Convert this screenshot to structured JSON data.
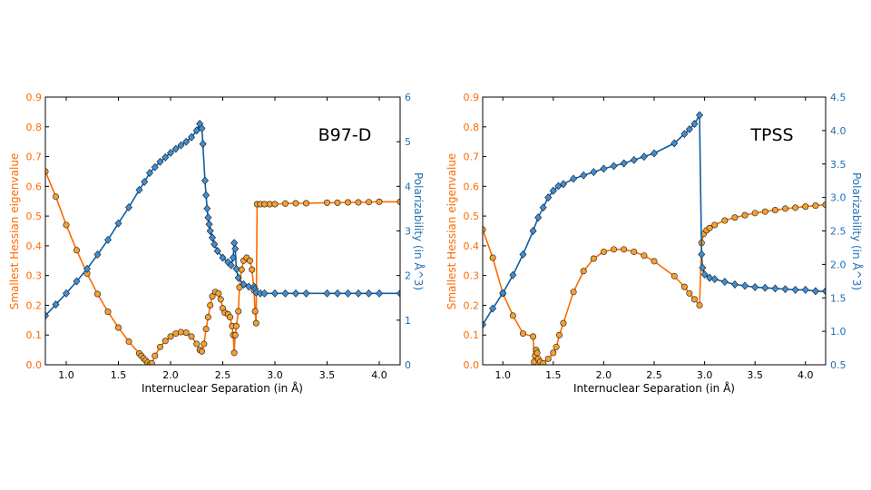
{
  "colors": {
    "eig_line": "#ff6a00",
    "eig_marker": "#f5a030",
    "pol_line": "#0b5fa8",
    "pol_marker": "#3e8fd6",
    "edge": "#1a1a1a",
    "eig_axis": "#ff6a00",
    "pol_axis": "#1f6fb5"
  },
  "chart_data": [
    {
      "type": "line",
      "title": "B97-D",
      "xlabel": "Internuclear Separation (in Å)",
      "ylabel": "Smallest Hessian eigenvalue",
      "y2label": "Polarizability (in Å^3)",
      "xlim": [
        0.8,
        4.2
      ],
      "ylim": [
        0,
        0.9
      ],
      "y2lim": [
        0,
        6
      ],
      "xticks": [
        "1.0",
        "1.5",
        "2.0",
        "2.5",
        "3.0",
        "3.5",
        "4.0"
      ],
      "yticks": [
        "0.0",
        "0.1",
        "0.2",
        "0.3",
        "0.4",
        "0.5",
        "0.6",
        "0.7",
        "0.8",
        "0.9"
      ],
      "y2ticks": [
        "0",
        "1",
        "2",
        "3",
        "4",
        "5",
        "6"
      ],
      "series": [
        {
          "axis": "left",
          "marker": "circle",
          "x": [
            0.8,
            0.9,
            1.0,
            1.1,
            1.2,
            1.3,
            1.4,
            1.5,
            1.6,
            1.7,
            1.72,
            1.74,
            1.76,
            1.78,
            1.8,
            1.82,
            1.85,
            1.9,
            1.95,
            2.0,
            2.05,
            2.1,
            2.15,
            2.2,
            2.25,
            2.28,
            2.3,
            2.32,
            2.34,
            2.36,
            2.38,
            2.4,
            2.43,
            2.46,
            2.48,
            2.5,
            2.52,
            2.55,
            2.57,
            2.59,
            2.6,
            2.61,
            2.62,
            2.63,
            2.65,
            2.66,
            2.68,
            2.7,
            2.73,
            2.76,
            2.78,
            2.8,
            2.81,
            2.82,
            2.83,
            2.86,
            2.9,
            2.95,
            3.0,
            3.1,
            3.2,
            3.3,
            3.5,
            3.6,
            3.7,
            3.8,
            3.9,
            4.0,
            4.2
          ],
          "y": [
            0.65,
            0.565,
            0.47,
            0.385,
            0.307,
            0.238,
            0.178,
            0.125,
            0.078,
            0.038,
            0.03,
            0.022,
            0.015,
            0.007,
            0.0,
            0.005,
            0.03,
            0.06,
            0.08,
            0.095,
            0.105,
            0.11,
            0.108,
            0.095,
            0.07,
            0.05,
            0.045,
            0.07,
            0.12,
            0.16,
            0.2,
            0.23,
            0.245,
            0.24,
            0.22,
            0.19,
            0.175,
            0.17,
            0.16,
            0.13,
            0.1,
            0.04,
            0.1,
            0.13,
            0.18,
            0.26,
            0.32,
            0.35,
            0.36,
            0.35,
            0.32,
            0.25,
            0.18,
            0.14,
            0.54,
            0.54,
            0.54,
            0.54,
            0.54,
            0.542,
            0.543,
            0.543,
            0.545,
            0.545,
            0.546,
            0.546,
            0.547,
            0.548,
            0.548
          ]
        },
        {
          "axis": "right",
          "marker": "diamond",
          "x": [
            0.8,
            0.9,
            1.0,
            1.1,
            1.2,
            1.3,
            1.4,
            1.5,
            1.6,
            1.7,
            1.75,
            1.8,
            1.85,
            1.9,
            1.95,
            2.0,
            2.05,
            2.1,
            2.15,
            2.2,
            2.25,
            2.28,
            2.3,
            2.31,
            2.33,
            2.34,
            2.35,
            2.36,
            2.37,
            2.38,
            2.4,
            2.42,
            2.45,
            2.5,
            2.55,
            2.58,
            2.6,
            2.61,
            2.62,
            2.63,
            2.65,
            2.7,
            2.75,
            2.8,
            2.81,
            2.82,
            2.86,
            2.9,
            3.0,
            3.1,
            3.2,
            3.3,
            3.5,
            3.6,
            3.7,
            3.8,
            3.9,
            4.0,
            4.2
          ],
          "y": [
            1.1,
            1.35,
            1.6,
            1.87,
            2.15,
            2.47,
            2.8,
            3.17,
            3.53,
            3.92,
            4.1,
            4.3,
            4.43,
            4.55,
            4.65,
            4.75,
            4.84,
            4.92,
            5.0,
            5.1,
            5.25,
            5.4,
            5.3,
            4.95,
            4.13,
            3.8,
            3.5,
            3.3,
            3.15,
            3.0,
            2.85,
            2.7,
            2.55,
            2.4,
            2.3,
            2.23,
            2.4,
            2.73,
            2.6,
            2.15,
            1.95,
            1.8,
            1.75,
            1.75,
            1.7,
            1.62,
            1.6,
            1.6,
            1.6,
            1.6,
            1.6,
            1.6,
            1.6,
            1.6,
            1.6,
            1.6,
            1.6,
            1.6,
            1.6
          ]
        }
      ]
    },
    {
      "type": "line",
      "title": "TPSS",
      "xlabel": "Internuclear Separation (in Å)",
      "ylabel": "Smallest Hessian eigenvalue",
      "y2label": "Polarizability (in Å^3)",
      "xlim": [
        0.8,
        4.2
      ],
      "ylim": [
        0,
        0.9
      ],
      "y2lim": [
        0.5,
        4.5
      ],
      "xticks": [
        "1.0",
        "1.5",
        "2.0",
        "2.5",
        "3.0",
        "3.5",
        "4.0"
      ],
      "yticks": [
        "0.0",
        "0.1",
        "0.2",
        "0.3",
        "0.4",
        "0.5",
        "0.6",
        "0.7",
        "0.8",
        "0.9"
      ],
      "y2ticks": [
        "0.5",
        "1.0",
        "1.5",
        "2.0",
        "2.5",
        "3.0",
        "3.5",
        "4.0",
        "4.5"
      ],
      "series": [
        {
          "axis": "left",
          "marker": "circle",
          "x": [
            0.8,
            0.9,
            1.0,
            1.1,
            1.2,
            1.3,
            1.31,
            1.32,
            1.33,
            1.34,
            1.35,
            1.37,
            1.4,
            1.45,
            1.5,
            1.53,
            1.56,
            1.6,
            1.7,
            1.8,
            1.9,
            2.0,
            2.1,
            2.2,
            2.3,
            2.4,
            2.5,
            2.7,
            2.8,
            2.85,
            2.9,
            2.95,
            2.97,
            2.99,
            3.02,
            3.05,
            3.1,
            3.2,
            3.3,
            3.4,
            3.5,
            3.6,
            3.7,
            3.8,
            3.9,
            4.0,
            4.1,
            4.2
          ],
          "y": [
            0.455,
            0.36,
            0.24,
            0.165,
            0.105,
            0.095,
            0.01,
            0.03,
            0.05,
            0.04,
            0.02,
            0.01,
            0.005,
            0.02,
            0.04,
            0.06,
            0.1,
            0.14,
            0.245,
            0.315,
            0.357,
            0.38,
            0.388,
            0.388,
            0.38,
            0.367,
            0.348,
            0.298,
            0.262,
            0.24,
            0.22,
            0.2,
            0.41,
            0.44,
            0.452,
            0.46,
            0.47,
            0.485,
            0.495,
            0.503,
            0.51,
            0.515,
            0.52,
            0.525,
            0.528,
            0.532,
            0.535,
            0.538
          ]
        },
        {
          "axis": "right",
          "marker": "diamond",
          "x": [
            0.8,
            0.9,
            1.0,
            1.1,
            1.2,
            1.3,
            1.35,
            1.4,
            1.45,
            1.5,
            1.55,
            1.6,
            1.7,
            1.8,
            1.9,
            2.0,
            2.1,
            2.2,
            2.3,
            2.4,
            2.5,
            2.7,
            2.8,
            2.85,
            2.9,
            2.95,
            2.97,
            2.98,
            3.0,
            3.05,
            3.1,
            3.2,
            3.3,
            3.4,
            3.5,
            3.6,
            3.7,
            3.8,
            3.9,
            4.0,
            4.1,
            4.2
          ],
          "y": [
            1.1,
            1.34,
            1.57,
            1.84,
            2.15,
            2.5,
            2.7,
            2.85,
            3.0,
            3.1,
            3.17,
            3.2,
            3.28,
            3.33,
            3.38,
            3.43,
            3.47,
            3.51,
            3.56,
            3.61,
            3.66,
            3.81,
            3.95,
            4.02,
            4.1,
            4.23,
            2.15,
            1.95,
            1.85,
            1.8,
            1.78,
            1.74,
            1.7,
            1.68,
            1.66,
            1.65,
            1.64,
            1.63,
            1.62,
            1.62,
            1.6,
            1.6
          ]
        }
      ]
    }
  ]
}
